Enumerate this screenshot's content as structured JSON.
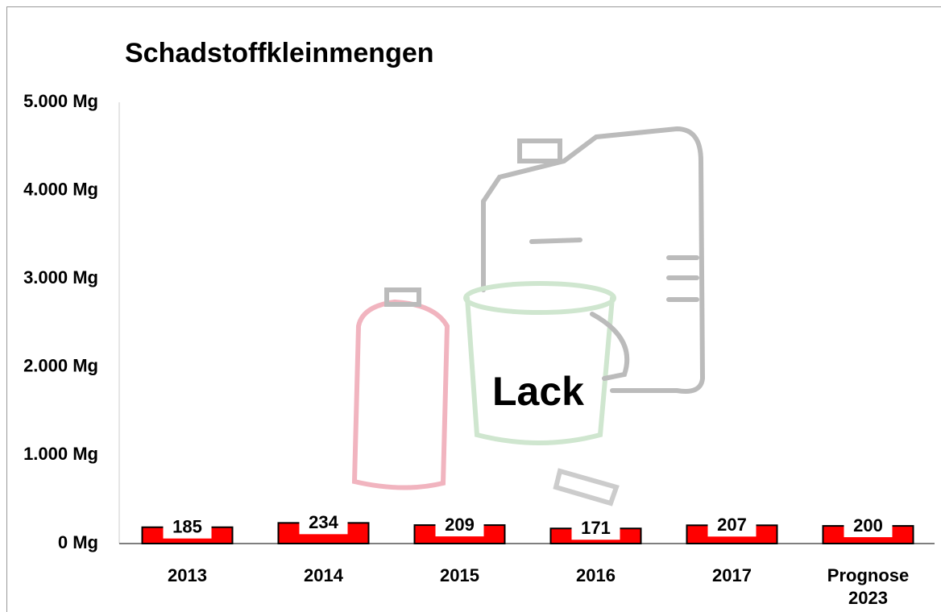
{
  "chart_data": {
    "type": "bar",
    "title": "Schadstoffkleinmengen",
    "categories": [
      "2013",
      "2014",
      "2015",
      "2016",
      "2017",
      "Prognose 2023"
    ],
    "values": [
      185,
      234,
      209,
      171,
      207,
      200
    ],
    "color": "#ff0000",
    "ylim": [
      0,
      5000
    ],
    "yticks": [
      {
        "value": 0,
        "label": "0 Mg"
      },
      {
        "value": 1000,
        "label": "1.000 Mg"
      },
      {
        "value": 2000,
        "label": "2.000 Mg"
      },
      {
        "value": 3000,
        "label": "3.000 Mg"
      },
      {
        "value": 4000,
        "label": "4.000 Mg"
      },
      {
        "value": 5000,
        "label": "5.000 Mg"
      }
    ],
    "grid": false
  }
}
